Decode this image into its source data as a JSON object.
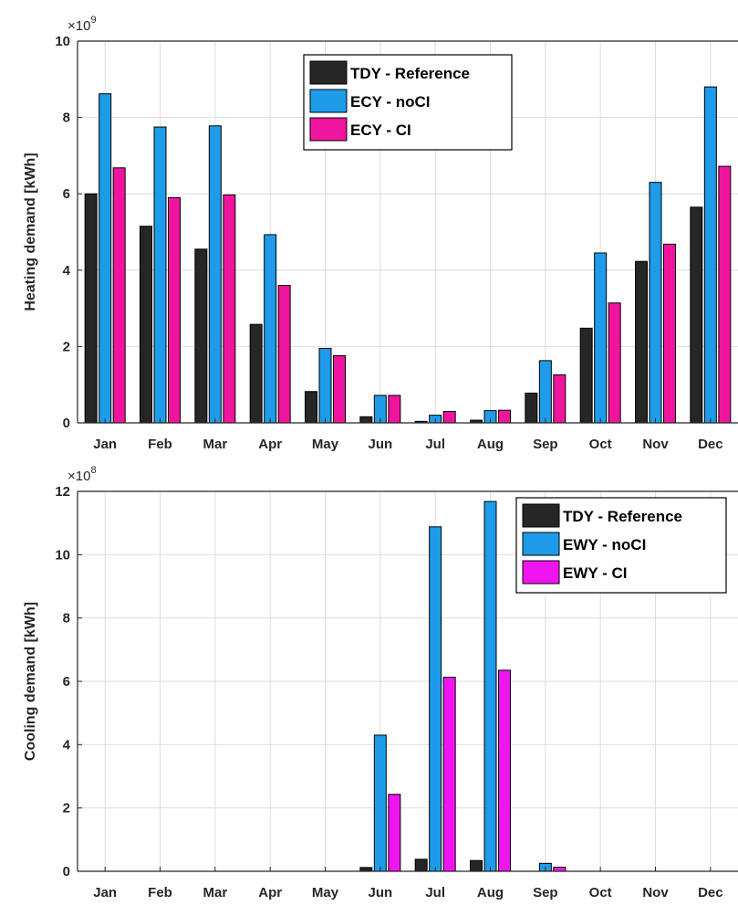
{
  "colors": {
    "reference": "#262626",
    "noci": "#1e9be9",
    "ci_heating": "#f0159d",
    "ci_cooling": "#f015f0",
    "grid": "#dedede",
    "axis": "#262626"
  },
  "chart_data": [
    {
      "type": "bar",
      "ylabel": "Heating demand [kWh]",
      "multiplier_base": "×10",
      "multiplier_exp": "9",
      "ylim": [
        0,
        10
      ],
      "yticks": [
        "0",
        "2",
        "4",
        "6",
        "8",
        "10"
      ],
      "categories": [
        "Jan",
        "Feb",
        "Mar",
        "Apr",
        "May",
        "Jun",
        "Jul",
        "Aug",
        "Sep",
        "Oct",
        "Nov",
        "Dec"
      ],
      "legend_position": "top-center",
      "grid": true,
      "series": [
        {
          "name": "TDY - Reference",
          "color_key": "reference",
          "values": [
            6.0,
            5.15,
            4.55,
            2.58,
            0.82,
            0.16,
            0.04,
            0.07,
            0.78,
            2.48,
            4.23,
            5.65
          ]
        },
        {
          "name": "ECY - noCI",
          "color_key": "noci",
          "values": [
            8.62,
            7.75,
            7.78,
            4.93,
            1.95,
            0.72,
            0.2,
            0.32,
            1.63,
            4.45,
            6.3,
            8.8
          ]
        },
        {
          "name": "ECY - CI",
          "color_key": "ci_heating",
          "values": [
            6.68,
            5.9,
            5.97,
            3.6,
            1.76,
            0.72,
            0.3,
            0.33,
            1.26,
            3.14,
            4.68,
            6.72
          ]
        }
      ]
    },
    {
      "type": "bar",
      "ylabel": "Cooling demand [kWh]",
      "multiplier_base": "×10",
      "multiplier_exp": "8",
      "ylim": [
        0,
        12
      ],
      "yticks": [
        "0",
        "2",
        "4",
        "6",
        "8",
        "10",
        "12"
      ],
      "categories": [
        "Jan",
        "Feb",
        "Mar",
        "Apr",
        "May",
        "Jun",
        "Jul",
        "Aug",
        "Sep",
        "Oct",
        "Nov",
        "Dec"
      ],
      "legend_position": "top-right",
      "grid": true,
      "series": [
        {
          "name": "TDY - Reference",
          "color_key": "reference",
          "values": [
            0,
            0,
            0,
            0,
            0,
            0.12,
            0.38,
            0.34,
            0,
            0,
            0,
            0
          ]
        },
        {
          "name": "EWY - noCI",
          "color_key": "noci",
          "values": [
            0,
            0,
            0,
            0,
            0,
            4.3,
            10.88,
            11.68,
            0.25,
            0,
            0,
            0
          ]
        },
        {
          "name": "EWY - CI",
          "color_key": "ci_cooling",
          "values": [
            0,
            0,
            0,
            0,
            0,
            2.43,
            6.13,
            6.35,
            0.13,
            0,
            0,
            0
          ]
        }
      ]
    }
  ]
}
